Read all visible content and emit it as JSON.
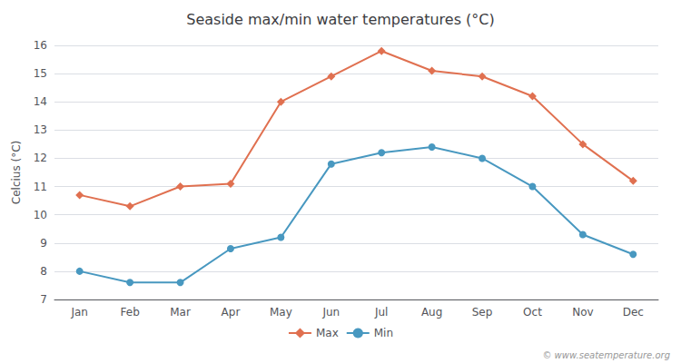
{
  "chart_data": {
    "type": "line",
    "title": "Seaside max/min water temperatures (°C)",
    "y_label": "Celcius (°C)",
    "categories": [
      "Jan",
      "Feb",
      "Mar",
      "Apr",
      "May",
      "Jun",
      "Jul",
      "Aug",
      "Sep",
      "Oct",
      "Nov",
      "Dec"
    ],
    "series": [
      {
        "name": "Max",
        "color": "#e07050",
        "marker": "diamond",
        "values": [
          10.7,
          10.3,
          11.0,
          11.1,
          14.0,
          14.9,
          15.8,
          15.1,
          14.9,
          14.2,
          12.5,
          11.2
        ]
      },
      {
        "name": "Min",
        "color": "#4898c0",
        "marker": "circle",
        "values": [
          8.0,
          7.6,
          7.6,
          8.8,
          9.2,
          11.8,
          12.2,
          12.4,
          12.0,
          11.0,
          9.3,
          8.6
        ]
      }
    ],
    "ylim": [
      7,
      16
    ],
    "yticks": [
      7,
      8,
      9,
      10,
      11,
      12,
      13,
      14,
      15,
      16
    ],
    "grid": true,
    "legend": "bottom",
    "annotations": [
      "© www.seatemperature.org"
    ]
  }
}
